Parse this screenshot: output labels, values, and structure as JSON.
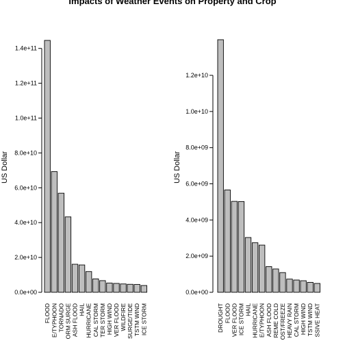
{
  "title": "Impacts of Weather Events on Property and Crop",
  "chart_data": [
    {
      "type": "bar",
      "ylabel": "US Dollar",
      "ylim": [
        0,
        145000000000
      ],
      "yticks": [
        0,
        20000000000,
        40000000000,
        60000000000,
        80000000000,
        100000000000,
        120000000000,
        140000000000
      ],
      "ytick_labels": [
        "0.0e+00",
        "2.0e+10",
        "4.0e+10",
        "6.0e+10",
        "8.0e+10",
        "1.0e+11",
        "1.2e+11",
        "1.4e+11"
      ],
      "categories": [
        "FLOOD",
        "HURRICANE/TYPHOON",
        "TORNADO",
        "STORM SURGE",
        "FLASH FLOOD",
        "HAIL",
        "HURRICANE",
        "TROPICAL STORM",
        "WINTER STORM",
        "HIGH WIND",
        "RIVER FLOOD",
        "WILDFIRE",
        "STORM SURGE/TIDE",
        "TSTM WIND",
        "ICE STORM"
      ],
      "category_labels": [
        "FLOOD",
        "E/TYPHOON",
        "TORNADO",
        "ORM SURGE",
        "ASH FLOOD",
        "HAIL",
        "HURRICANE",
        "CAL STORM",
        "TER STORM",
        "HIGH WIND",
        "VER FLOOD",
        "WILDFIRE",
        "SURGE/TIDE",
        "TSTM WIND",
        "ICE STORM"
      ],
      "values": [
        144600000000,
        69300000000,
        56900000000,
        43300000000,
        16100000000,
        15700000000,
        11900000000,
        7700000000,
        6700000000,
        5300000000,
        5100000000,
        4800000000,
        4600000000,
        4500000000,
        3900000000
      ]
    },
    {
      "type": "bar",
      "ylabel": "US Dollar",
      "ylim": [
        0,
        13970000000
      ],
      "yticks": [
        0,
        2000000000,
        4000000000,
        6000000000,
        8000000000,
        10000000000,
        12000000000
      ],
      "ytick_labels": [
        "0.0e+00",
        "2.0e+09",
        "4.0e+09",
        "6.0e+09",
        "8.0e+09",
        "1.0e+10",
        "1.2e+10"
      ],
      "categories": [
        "DROUGHT",
        "FLOOD",
        "RIVER FLOOD",
        "ICE STORM",
        "HAIL",
        "HURRICANE",
        "HURRICANE/TYPHOON",
        "FLASH FLOOD",
        "EXTREME COLD",
        "FROST/FREEZE",
        "HEAVY RAIN",
        "TROPICAL STORM",
        "HIGH WIND",
        "TSTM WIND",
        "EXCESSIVE HEAT"
      ],
      "category_labels": [
        "DROUGHT",
        "FLOOD",
        "VER FLOOD",
        "ICE STORM",
        "HAIL",
        "HURRICANE",
        "E/TYPHOON",
        "ASH FLOOD",
        "REME COLD",
        "OST/FREEZE",
        "HEAVY RAIN",
        "CAL STORM",
        "HIGH WIND",
        "TSTM WIND",
        "SSIVE HEAT"
      ],
      "values": [
        13970000000,
        5660000000,
        5030000000,
        5020000000,
        3030000000,
        2740000000,
        2610000000,
        1420000000,
        1290000000,
        1090000000,
        730000000,
        680000000,
        640000000,
        550000000,
        490000000
      ]
    }
  ]
}
